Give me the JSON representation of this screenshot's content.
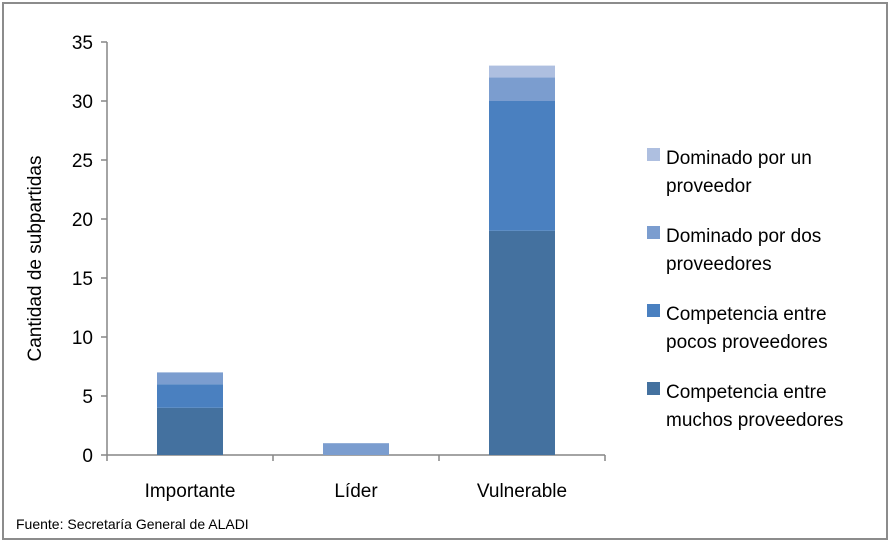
{
  "chart_data": {
    "type": "bar",
    "stacked": true,
    "categories": [
      "Importante",
      "Líder",
      "Vulnerable"
    ],
    "series": [
      {
        "name": "Competencia entre muchos proveedores",
        "name_lines": [
          "Competencia entre",
          "muchos proveedores"
        ],
        "color": "#44719f",
        "values": [
          4,
          0,
          19
        ]
      },
      {
        "name": "Competencia entre pocos proveedores",
        "name_lines": [
          "Competencia entre",
          "pocos proveedores"
        ],
        "color": "#4a80c0",
        "values": [
          2,
          0,
          11
        ]
      },
      {
        "name": "Dominado por dos proveedores",
        "name_lines": [
          "Dominado por dos",
          "proveedores"
        ],
        "color": "#7b9dcf",
        "values": [
          1,
          1,
          2
        ]
      },
      {
        "name": "Dominado por un proveedor",
        "name_lines": [
          "Dominado por un",
          "proveedor"
        ],
        "color": "#aebfe0",
        "values": [
          0,
          0,
          1
        ]
      }
    ],
    "ylabel": "Cantidad de subpartidas",
    "xlabel": "",
    "ylim": [
      0,
      35
    ],
    "yticks": [
      0,
      5,
      10,
      15,
      20,
      25,
      30,
      35
    ],
    "grid": false,
    "legend": "right"
  },
  "source": "Fuente: Secretaría General de ALADI"
}
